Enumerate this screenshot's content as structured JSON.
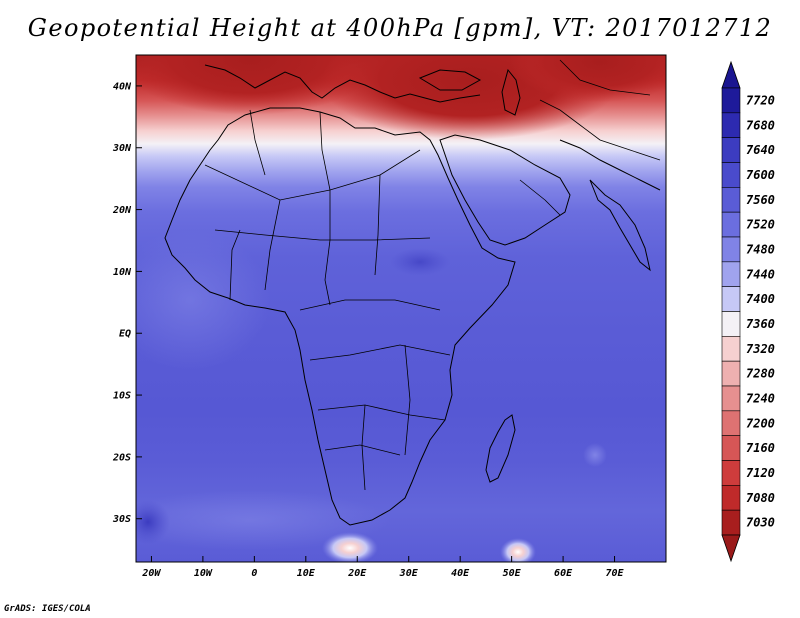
{
  "title": "Geopotential Height at 400hPa [gpm], VT: 2017012712",
  "credit": "GrADS: IGES/COLA",
  "map": {
    "region": "Africa and surroundings",
    "lon_range": [
      -23,
      80
    ],
    "lat_range": [
      -37,
      45
    ],
    "lat_ticks": [
      {
        "value": 40,
        "label": "40N"
      },
      {
        "value": 30,
        "label": "30N"
      },
      {
        "value": 20,
        "label": "20N"
      },
      {
        "value": 10,
        "label": "10N"
      },
      {
        "value": 0,
        "label": "EQ"
      },
      {
        "value": -10,
        "label": "10S"
      },
      {
        "value": -20,
        "label": "20S"
      },
      {
        "value": -30,
        "label": "30S"
      }
    ],
    "lon_ticks": [
      {
        "value": -20,
        "label": "20W"
      },
      {
        "value": -10,
        "label": "10W"
      },
      {
        "value": 0,
        "label": "0"
      },
      {
        "value": 10,
        "label": "10E"
      },
      {
        "value": 20,
        "label": "20E"
      },
      {
        "value": 30,
        "label": "30E"
      },
      {
        "value": 40,
        "label": "40E"
      },
      {
        "value": 50,
        "label": "50E"
      },
      {
        "value": 60,
        "label": "60E"
      },
      {
        "value": 70,
        "label": "70E"
      }
    ],
    "features": {
      "northern_high_band": "7030-7200 gpm over Mediterranean, Turkey, Caucasus, Caspian",
      "tropics": "7560-7600 gpm",
      "south_atlantic_max": "7640 gpm near 35S 20W"
    }
  },
  "colorbar": {
    "levels": [
      {
        "label": "7720",
        "color": "#1e1a9a"
      },
      {
        "label": "7680",
        "color": "#2d2ab0"
      },
      {
        "label": "7640",
        "color": "#3c3cc0"
      },
      {
        "label": "7600",
        "color": "#4a4bcc"
      },
      {
        "label": "7560",
        "color": "#5a5cd6"
      },
      {
        "label": "7520",
        "color": "#6b6edf"
      },
      {
        "label": "7480",
        "color": "#8083e6"
      },
      {
        "label": "7440",
        "color": "#a0a3ee"
      },
      {
        "label": "7400",
        "color": "#c6c8f6"
      },
      {
        "label": "7360",
        "color": "#f4f1f6"
      },
      {
        "label": "7320",
        "color": "#f6d0d0"
      },
      {
        "label": "7280",
        "color": "#eeb0b0"
      },
      {
        "label": "7240",
        "color": "#e69090"
      },
      {
        "label": "7200",
        "color": "#de7272"
      },
      {
        "label": "7160",
        "color": "#d65656"
      },
      {
        "label": "7120",
        "color": "#ce3c3c"
      },
      {
        "label": "7080",
        "color": "#bf2a2a"
      },
      {
        "label": "7030",
        "color": "#a81e1e"
      }
    ],
    "top_arrow_color": "#1a1590",
    "bottom_arrow_color": "#9a1a1a"
  }
}
